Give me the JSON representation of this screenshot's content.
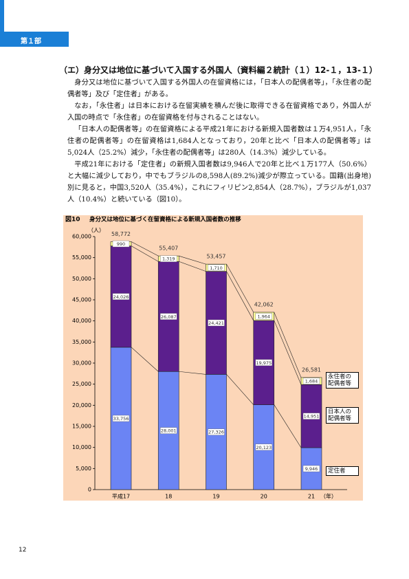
{
  "header": {
    "part": "第１部"
  },
  "section": {
    "heading": "（エ）身分又は地位に基づいて入国する外国人（資料編２統計（１）12-１，13-１）",
    "paragraphs": [
      "身分又は地位に基づいて入国する外国人の在留資格には，「日本人の配偶者等」，「永住者の配偶者等」及び「定住者」がある。",
      "なお，「永住者」は日本における在留実績を積んだ後に取得できる在留資格であり，外国人が入国の時点で「永住者」の在留資格を付与されることはない。",
      "「日本人の配偶者等」の在留資格による平成21年における新規入国者数は１万4,951人，「永住者の配偶者等」の在留資格は1,684人となっており，20年と比べ「日本人の配偶者等」は5,024人（25.2%）減少，「永住者の配偶者等」は280人（14.3%）減少している。",
      "平成21年における「定住者」の新規入国者数は9,946人で20年と比べ１万177人（50.6%）と大幅に減少しており，中でもブラジルの8,598人(89.2%)減少が際立っている。国籍(出身地)別に見ると，中国3,520人（35.4%），これにフィリピン2,854人（28.7%），ブラジルが1,037人（10.4%）と続いている（図10）。"
    ]
  },
  "chart_data": {
    "type": "bar",
    "stacked": true,
    "figure_label": "図10",
    "title": "身分又は地位に基づく在留資格による新規入国者数の推移",
    "y_unit": "（人）",
    "x_unit": "（年）",
    "categories": [
      "平成17",
      "18",
      "19",
      "20",
      "21"
    ],
    "series": [
      {
        "name": "定住者",
        "color": "#6b84f4",
        "values": [
          33756,
          28001,
          27326,
          20123,
          9946
        ],
        "value_labels": [
          "33,756",
          "28,001",
          "27,326",
          "20,123",
          "9,946"
        ]
      },
      {
        "name": "日本人の配偶者等",
        "color": "#5b1f8d",
        "values": [
          24026,
          26087,
          24421,
          19975,
          14951
        ],
        "value_labels": [
          "24,026",
          "26,087",
          "24,421",
          "19,975",
          "14,951"
        ]
      },
      {
        "name": "永住者の配偶者等",
        "color": "#ffff99",
        "values": [
          990,
          1319,
          1710,
          1964,
          1684
        ],
        "value_labels": [
          "990",
          "1,319",
          "1,710",
          "1,964",
          "1,684"
        ]
      }
    ],
    "totals": {
      "values": [
        58772,
        55407,
        53457,
        42062,
        26581
      ],
      "value_labels": [
        "58,772",
        "55,407",
        "53,457",
        "42,062",
        "26,581"
      ]
    },
    "ylim": [
      0,
      60000
    ],
    "yticks": [
      0,
      {
        "value": 5000,
        "label": "5,000"
      },
      {
        "value": 10000,
        "label": "10,000"
      },
      {
        "value": 15000,
        "label": "15,000"
      },
      {
        "value": 20000,
        "label": "20,000"
      },
      {
        "value": 25000,
        "label": "25,000"
      },
      {
        "value": 30000,
        "label": "30,000"
      },
      {
        "value": 35000,
        "label": "35,000"
      },
      {
        "value": 40000,
        "label": "40,000"
      },
      {
        "value": 45000,
        "label": "45,000"
      },
      {
        "value": 50000,
        "label": "50,000"
      },
      {
        "value": 55000,
        "label": "55,000"
      },
      {
        "value": 60000,
        "label": "60,000"
      }
    ]
  },
  "page_number": "12"
}
